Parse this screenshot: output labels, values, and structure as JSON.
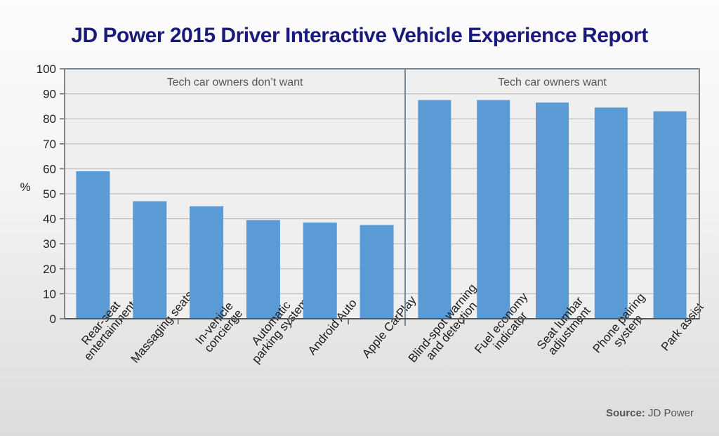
{
  "chart_data": {
    "type": "bar",
    "title": "JD Power 2015 Driver Interactive Vehicle Experience Report",
    "ylabel": "%",
    "ylim": [
      0,
      100
    ],
    "yticks": [
      0,
      10,
      20,
      30,
      40,
      50,
      60,
      70,
      80,
      90,
      100
    ],
    "grid": true,
    "bar_color": "#5b9bd5",
    "groups": [
      {
        "label": "Tech car owners don’t want",
        "categories": [
          [
            "Rear-seat",
            "entertainment"
          ],
          [
            "Massaging seats"
          ],
          [
            "In-vehicle",
            "concierge"
          ],
          [
            "Automatic",
            "parking system"
          ],
          [
            "Android Auto"
          ],
          [
            "Apple CarPlay"
          ]
        ],
        "values": [
          59,
          47,
          45,
          39.5,
          38.5,
          37.5
        ]
      },
      {
        "label": "Tech car owners want",
        "categories": [
          [
            "Blind-spot warning",
            "and detection"
          ],
          [
            "Fuel economy",
            "indicator"
          ],
          [
            "Seat lumbar",
            "adjustment"
          ],
          [
            "Phone pairing",
            "system"
          ],
          [
            "Park assist"
          ]
        ],
        "values": [
          87.5,
          87.5,
          86.5,
          84.5,
          83
        ]
      }
    ]
  },
  "source": {
    "label": "Source:",
    "text": " JD Power"
  }
}
